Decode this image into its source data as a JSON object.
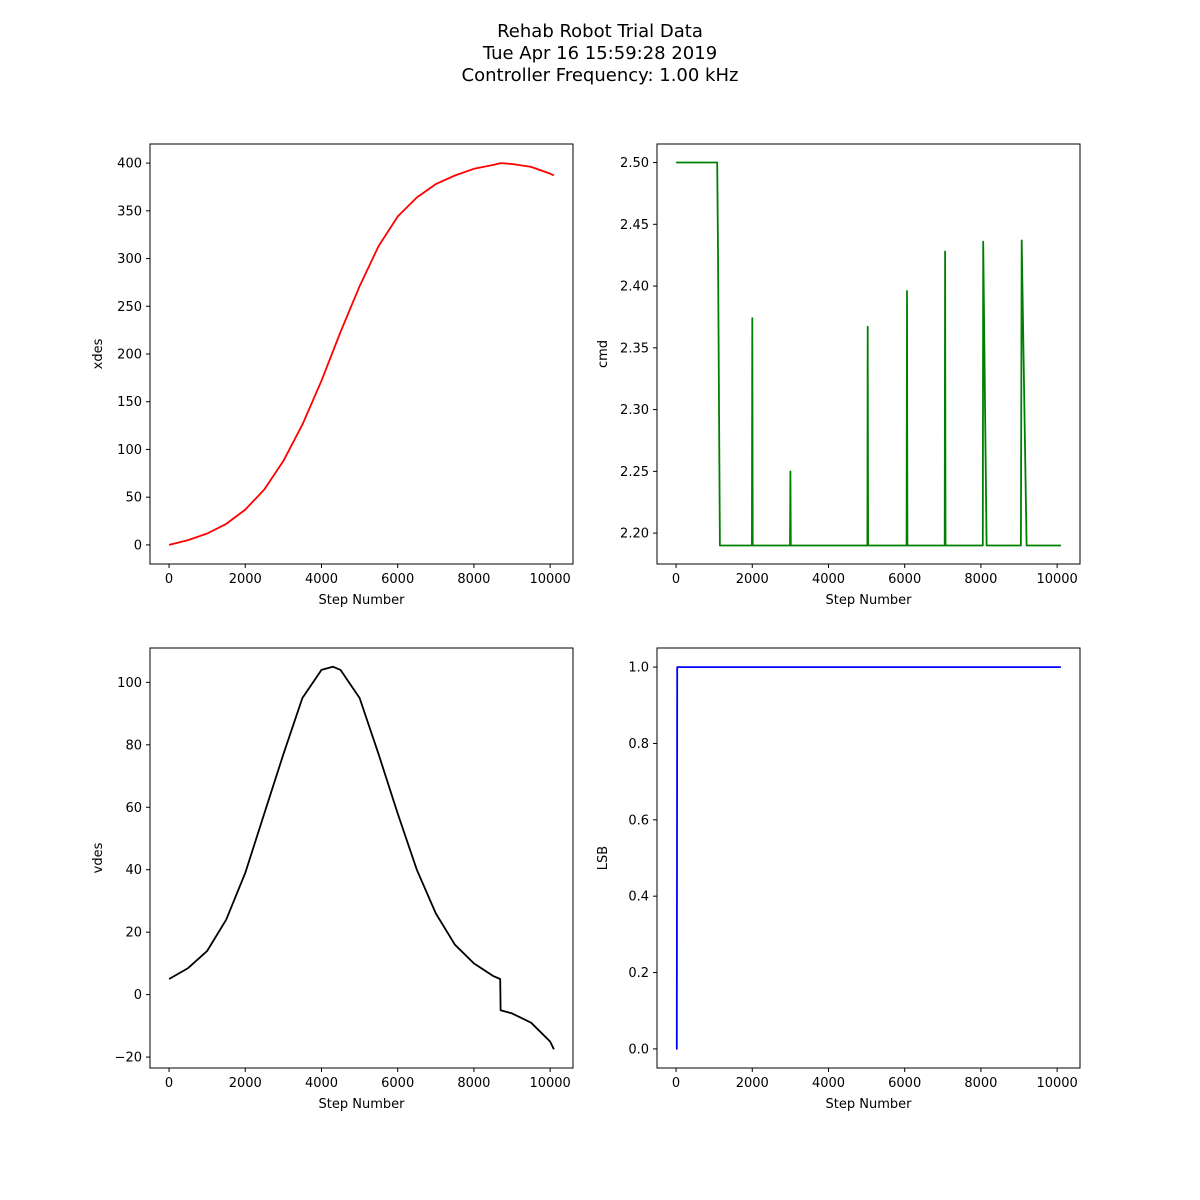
{
  "figure": {
    "title_lines": [
      "Rehab Robot Trial Data",
      "Tue Apr 16 15:59:28 2019",
      "Controller Frequency: 1.00 kHz"
    ]
  },
  "chart_data": [
    {
      "type": "line",
      "xlabel": "Step Number",
      "ylabel": "xdes",
      "xlim": [
        -500,
        10600
      ],
      "ylim": [
        -20,
        420
      ],
      "xticks": [
        0,
        2000,
        4000,
        6000,
        8000,
        10000
      ],
      "yticks": [
        0,
        50,
        100,
        150,
        200,
        250,
        300,
        350,
        400
      ],
      "color": "#ff0000",
      "series": [
        {
          "x": [
            0,
            500,
            1000,
            1500,
            2000,
            2500,
            3000,
            3500,
            4000,
            4500,
            5000,
            5500,
            6000,
            6500,
            7000,
            7500,
            8000,
            8500,
            8700,
            9000,
            9500,
            10000,
            10100
          ],
          "y": [
            0,
            5,
            12,
            22,
            37,
            58,
            88,
            126,
            172,
            223,
            271,
            313,
            344,
            364,
            378,
            387,
            394,
            398,
            400,
            399,
            396,
            389,
            387
          ]
        }
      ]
    },
    {
      "type": "line",
      "xlabel": "Step Number",
      "ylabel": "cmd",
      "xlim": [
        -500,
        10600
      ],
      "ylim": [
        2.175,
        2.515
      ],
      "xticks": [
        0,
        2000,
        4000,
        6000,
        8000,
        10000
      ],
      "yticks": [
        2.2,
        2.25,
        2.3,
        2.35,
        2.4,
        2.45,
        2.5
      ],
      "ytick_decimals": 2,
      "color": "#008000",
      "series": [
        {
          "x": [
            0,
            1080,
            1100,
            1150,
            1990,
            2000,
            2010,
            2990,
            3000,
            3010,
            5020,
            5030,
            5040,
            6050,
            6060,
            6070,
            7050,
            7060,
            7070,
            8050,
            8060,
            8150,
            9050,
            9070,
            9200,
            10100
          ],
          "y": [
            2.5,
            2.5,
            2.43,
            2.19,
            2.19,
            2.374,
            2.19,
            2.19,
            2.25,
            2.19,
            2.19,
            2.367,
            2.19,
            2.19,
            2.396,
            2.19,
            2.19,
            2.428,
            2.19,
            2.19,
            2.436,
            2.19,
            2.19,
            2.437,
            2.19,
            2.19
          ]
        }
      ]
    },
    {
      "type": "line",
      "xlabel": "Step Number",
      "ylabel": "vdes",
      "xlim": [
        -500,
        10600
      ],
      "ylim": [
        -23.5,
        111
      ],
      "xticks": [
        0,
        2000,
        4000,
        6000,
        8000,
        10000
      ],
      "yticks": [
        -20,
        0,
        20,
        40,
        60,
        80,
        100
      ],
      "color": "#000000",
      "series": [
        {
          "x": [
            0,
            500,
            1000,
            1500,
            2000,
            2500,
            3000,
            3500,
            4000,
            4300,
            4500,
            5000,
            5500,
            6000,
            6500,
            7000,
            7500,
            8000,
            8500,
            8690,
            8700,
            9000,
            9500,
            10000,
            10100
          ],
          "y": [
            5,
            8.5,
            14,
            24,
            39,
            58,
            77,
            95,
            104,
            105,
            104,
            95,
            77,
            58,
            40,
            26,
            16,
            10,
            6,
            5,
            -5,
            -6,
            -9,
            -15,
            -17.5
          ]
        }
      ]
    },
    {
      "type": "line",
      "xlabel": "Step Number",
      "ylabel": "LSB",
      "xlim": [
        -500,
        10600
      ],
      "ylim": [
        -0.05,
        1.05
      ],
      "xticks": [
        0,
        2000,
        4000,
        6000,
        8000,
        10000
      ],
      "yticks": [
        0.0,
        0.2,
        0.4,
        0.6,
        0.8,
        1.0
      ],
      "ytick_decimals": 1,
      "color": "#0000ff",
      "series": [
        {
          "x": [
            0,
            20,
            30,
            10100
          ],
          "y": [
            0,
            0,
            1,
            1
          ]
        }
      ]
    }
  ]
}
